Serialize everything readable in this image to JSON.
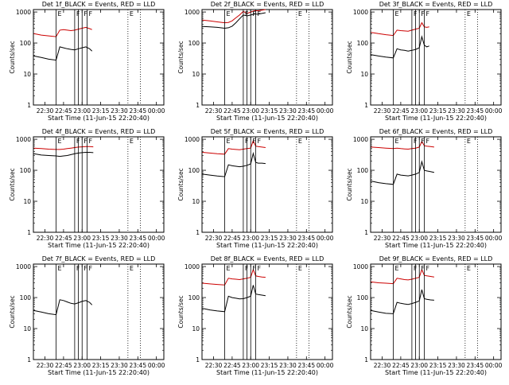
{
  "figure": {
    "background": "#ffffff",
    "axis_color": "#000000",
    "series_colors": {
      "events": "#000000",
      "lld": "#cc0000"
    }
  },
  "common": {
    "xlabel": "Start Time (11-Jun-15 22:20:40)",
    "ylabel": "Counts/sec",
    "xticks": [
      "22:30",
      "22:45",
      "23:00",
      "23:15",
      "23:30",
      "23:45",
      "00:00"
    ],
    "yticks": [
      "1",
      "10",
      "100",
      "1000"
    ],
    "marker_letters": [
      "E",
      "F",
      "F",
      "F",
      "E"
    ],
    "x_range": [
      "22:20:40",
      "00:06:00"
    ],
    "y_range": [
      1,
      1200
    ],
    "y_scale": "log",
    "solid_lines_at": [
      "22:39",
      "22:54",
      "22:57",
      "23:00",
      "23:04"
    ],
    "dotted_lines_at": [
      "23:37",
      "23:47"
    ]
  },
  "chart_data": [
    {
      "type": "line",
      "title": "Det  1f_BLACK = Events, RED = LLD",
      "x": [
        "22:21",
        "22:27",
        "22:33",
        "22:39",
        "22:42",
        "22:45",
        "22:48",
        "22:51",
        "22:54",
        "22:57",
        "23:00",
        "23:03",
        "23:06",
        "23:08"
      ],
      "series": [
        {
          "name": "Events",
          "color": "#000000",
          "values": [
            38,
            34,
            30,
            28,
            75,
            70,
            65,
            62,
            60,
            65,
            70,
            75,
            65,
            55
          ]
        },
        {
          "name": "LLD",
          "color": "#cc0000",
          "values": [
            200,
            180,
            170,
            160,
            260,
            270,
            260,
            250,
            260,
            280,
            300,
            320,
            290,
            270
          ]
        }
      ]
    },
    {
      "type": "line",
      "title": "Det  2f_BLACK = Events, RED = LLD",
      "x": [
        "22:21",
        "22:27",
        "22:33",
        "22:39",
        "22:42",
        "22:45",
        "22:48",
        "22:51",
        "22:54",
        "22:57",
        "23:00",
        "23:03",
        "23:06",
        "23:09",
        "23:12"
      ],
      "series": [
        {
          "name": "Events",
          "color": "#000000",
          "values": [
            340,
            330,
            320,
            300,
            310,
            350,
            450,
            600,
            800,
            750,
            800,
            850,
            850,
            900,
            950
          ]
        },
        {
          "name": "LLD",
          "color": "#cc0000",
          "values": [
            550,
            520,
            480,
            450,
            460,
            520,
            650,
            800,
            1050,
            900,
            1000,
            1100,
            1100,
            1150,
            1200
          ]
        }
      ]
    },
    {
      "type": "line",
      "title": "Det  3f_BLACK = Events, RED = LLD",
      "x": [
        "22:21",
        "22:27",
        "22:33",
        "22:39",
        "22:42",
        "22:45",
        "22:48",
        "22:51",
        "22:54",
        "22:57",
        "23:00",
        "23:02",
        "23:04",
        "23:06",
        "23:08"
      ],
      "series": [
        {
          "name": "Events",
          "color": "#000000",
          "values": [
            42,
            38,
            35,
            33,
            65,
            60,
            58,
            55,
            58,
            62,
            70,
            160,
            85,
            75,
            80
          ]
        },
        {
          "name": "LLD",
          "color": "#cc0000",
          "values": [
            220,
            200,
            185,
            175,
            260,
            250,
            245,
            240,
            260,
            280,
            300,
            450,
            330,
            320,
            330
          ]
        }
      ]
    },
    {
      "type": "line",
      "title": "Det  4f_BLACK = Events, RED = LLD",
      "x": [
        "22:21",
        "22:27",
        "22:33",
        "22:39",
        "22:42",
        "22:45",
        "22:48",
        "22:51",
        "22:54",
        "22:57",
        "23:00",
        "23:03",
        "23:06",
        "23:09"
      ],
      "series": [
        {
          "name": "Events",
          "color": "#000000",
          "values": [
            340,
            310,
            300,
            290,
            280,
            290,
            300,
            320,
            340,
            360,
            370,
            380,
            380,
            370
          ]
        },
        {
          "name": "LLD",
          "color": "#cc0000",
          "values": [
            520,
            500,
            480,
            470,
            470,
            480,
            500,
            520,
            540,
            560,
            570,
            580,
            580,
            570
          ]
        }
      ]
    },
    {
      "type": "line",
      "title": "Det  5f_BLACK = Events, RED = LLD",
      "x": [
        "22:21",
        "22:27",
        "22:33",
        "22:39",
        "22:42",
        "22:45",
        "22:48",
        "22:51",
        "22:54",
        "22:57",
        "23:00",
        "23:02",
        "23:04",
        "23:06",
        "23:09",
        "23:12"
      ],
      "series": [
        {
          "name": "Events",
          "color": "#000000",
          "values": [
            75,
            70,
            65,
            62,
            150,
            140,
            135,
            130,
            135,
            145,
            160,
            350,
            180,
            170,
            170,
            165
          ]
        },
        {
          "name": "LLD",
          "color": "#cc0000",
          "values": [
            380,
            360,
            340,
            330,
            500,
            480,
            470,
            460,
            480,
            500,
            520,
            900,
            600,
            580,
            560,
            540
          ]
        }
      ]
    },
    {
      "type": "line",
      "title": "Det  6f_BLACK = Events, RED = LLD",
      "x": [
        "22:21",
        "22:27",
        "22:33",
        "22:39",
        "22:42",
        "22:45",
        "22:48",
        "22:51",
        "22:54",
        "22:57",
        "23:00",
        "23:02",
        "23:04",
        "23:06",
        "23:09",
        "23:12"
      ],
      "series": [
        {
          "name": "Events",
          "color": "#000000",
          "values": [
            45,
            40,
            37,
            35,
            75,
            70,
            68,
            66,
            70,
            75,
            85,
            190,
            100,
            95,
            90,
            85
          ]
        },
        {
          "name": "LLD",
          "color": "#cc0000",
          "values": [
            560,
            540,
            520,
            500,
            520,
            500,
            490,
            480,
            500,
            520,
            560,
            850,
            620,
            600,
            580,
            560
          ]
        }
      ]
    },
    {
      "type": "line",
      "title": "Det  7f_BLACK = Events, RED = LLD",
      "x": [
        "22:21",
        "22:27",
        "22:33",
        "22:39",
        "22:42",
        "22:45",
        "22:48",
        "22:51",
        "22:54",
        "22:57",
        "23:00",
        "23:03",
        "23:06",
        "23:08"
      ],
      "series": [
        {
          "name": "Events",
          "color": "#000000",
          "values": [
            38,
            34,
            30,
            28,
            85,
            80,
            72,
            65,
            62,
            68,
            75,
            80,
            70,
            58
          ]
        }
      ]
    },
    {
      "type": "line",
      "title": "Det  8f_BLACK = Events, RED = LLD",
      "x": [
        "22:21",
        "22:27",
        "22:33",
        "22:39",
        "22:42",
        "22:45",
        "22:48",
        "22:51",
        "22:54",
        "22:57",
        "23:00",
        "23:02",
        "23:04",
        "23:06",
        "23:09",
        "23:12"
      ],
      "series": [
        {
          "name": "Events",
          "color": "#000000",
          "values": [
            45,
            40,
            37,
            35,
            110,
            100,
            95,
            90,
            92,
            100,
            110,
            250,
            130,
            125,
            120,
            115
          ]
        },
        {
          "name": "LLD",
          "color": "#cc0000",
          "values": [
            290,
            275,
            265,
            255,
            420,
            400,
            390,
            380,
            400,
            420,
            450,
            800,
            500,
            480,
            460,
            450
          ]
        }
      ]
    },
    {
      "type": "line",
      "title": "Det  9f_BLACK = Events, RED = LLD",
      "x": [
        "22:21",
        "22:27",
        "22:33",
        "22:39",
        "22:42",
        "22:45",
        "22:48",
        "22:51",
        "22:54",
        "22:57",
        "23:00",
        "23:02",
        "23:04",
        "23:06",
        "23:09",
        "23:12"
      ],
      "series": [
        {
          "name": "Events",
          "color": "#000000",
          "values": [
            38,
            34,
            31,
            30,
            70,
            65,
            62,
            60,
            64,
            70,
            78,
            180,
            92,
            88,
            84,
            82
          ]
        },
        {
          "name": "LLD",
          "color": "#cc0000",
          "values": [
            320,
            300,
            290,
            280,
            420,
            400,
            380,
            370,
            390,
            420,
            450,
            800,
            520,
            500,
            480,
            460
          ]
        }
      ]
    }
  ]
}
